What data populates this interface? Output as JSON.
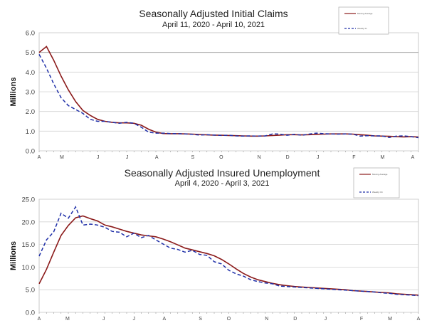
{
  "chart_data": [
    {
      "type": "line",
      "title": "Seasonally Adjusted Initial Claims",
      "subtitle": "April 11, 2020 - April 10, 2021",
      "ylabel": "Millions",
      "ylim": [
        0,
        6
      ],
      "yticks": [
        "0.0",
        "1.0",
        "2.0",
        "3.0",
        "4.0",
        "5.0",
        "6.0"
      ],
      "xtick_labels": [
        "A",
        "M",
        "J",
        "J",
        "A",
        "S",
        "O",
        "N",
        "D",
        "J",
        "F",
        "M",
        "A"
      ],
      "grid": true,
      "legend": "top-right",
      "colors": {
        "moving_average": "#8b1a1a",
        "weekly": "#1f2fa8"
      },
      "series": [
        {
          "name": "Moving Average",
          "style": "solid",
          "values": [
            5.0,
            5.3,
            4.6,
            3.8,
            3.1,
            2.5,
            2.05,
            1.8,
            1.6,
            1.5,
            1.45,
            1.42,
            1.42,
            1.4,
            1.3,
            1.1,
            0.95,
            0.88,
            0.87,
            0.87,
            0.86,
            0.85,
            0.83,
            0.81,
            0.8,
            0.79,
            0.78,
            0.77,
            0.76,
            0.75,
            0.75,
            0.76,
            0.78,
            0.8,
            0.82,
            0.82,
            0.81,
            0.82,
            0.84,
            0.85,
            0.86,
            0.86,
            0.86,
            0.85,
            0.82,
            0.79,
            0.76,
            0.75,
            0.74,
            0.72,
            0.71,
            0.72,
            0.7
          ]
        },
        {
          "name": "Weekly IC",
          "style": "dashed",
          "values": [
            4.9,
            4.2,
            3.4,
            2.7,
            2.3,
            2.1,
            1.9,
            1.6,
            1.5,
            1.5,
            1.45,
            1.4,
            1.45,
            1.4,
            1.2,
            0.95,
            0.9,
            0.9,
            0.88,
            0.87,
            0.86,
            0.84,
            0.8,
            0.82,
            0.8,
            0.78,
            0.79,
            0.76,
            0.75,
            0.76,
            0.75,
            0.76,
            0.86,
            0.85,
            0.79,
            0.84,
            0.79,
            0.85,
            0.9,
            0.87,
            0.86,
            0.85,
            0.86,
            0.85,
            0.75,
            0.77,
            0.76,
            0.76,
            0.68,
            0.75,
            0.76,
            0.72,
            0.67
          ]
        }
      ]
    },
    {
      "type": "line",
      "title": "Seasonally Adjusted Insured Unemployment",
      "subtitle": "April 4, 2020 - April 3, 2021",
      "ylabel": "Millions",
      "ylim": [
        0,
        25
      ],
      "yticks": [
        "0.0",
        "5.0",
        "10.0",
        "15.0",
        "20.0",
        "25.0"
      ],
      "xtick_labels": [
        "A",
        "M",
        "J",
        "J",
        "A",
        "S",
        "O",
        "N",
        "D",
        "J",
        "F",
        "M",
        "A"
      ],
      "grid": true,
      "legend": "top-right",
      "colors": {
        "moving_average": "#8b1a1a",
        "weekly": "#1f2fa8"
      },
      "series": [
        {
          "name": "Moving Average",
          "style": "solid",
          "values": [
            6.3,
            9.5,
            13.3,
            17.0,
            19.2,
            20.9,
            21.3,
            20.7,
            20.2,
            19.3,
            18.9,
            18.4,
            17.9,
            17.5,
            17.1,
            16.9,
            16.7,
            16.2,
            15.6,
            14.9,
            14.2,
            13.8,
            13.4,
            13.0,
            12.5,
            11.7,
            10.7,
            9.6,
            8.6,
            7.8,
            7.2,
            6.8,
            6.4,
            6.1,
            5.9,
            5.7,
            5.6,
            5.5,
            5.4,
            5.3,
            5.2,
            5.1,
            5.0,
            4.8,
            4.7,
            4.6,
            4.5,
            4.4,
            4.3,
            4.1,
            4.0,
            3.9,
            3.8
          ]
        },
        {
          "name": "Weekly CC",
          "style": "dashed",
          "values": [
            12.4,
            16.0,
            17.8,
            21.9,
            20.8,
            23.3,
            19.3,
            19.5,
            19.3,
            18.8,
            17.9,
            17.7,
            16.7,
            17.5,
            16.5,
            17.0,
            16.0,
            15.1,
            14.2,
            13.9,
            13.3,
            13.7,
            12.8,
            12.6,
            11.2,
            10.7,
            9.3,
            8.5,
            8.0,
            7.2,
            6.8,
            6.5,
            6.3,
            5.8,
            5.7,
            5.6,
            5.5,
            5.4,
            5.3,
            5.2,
            5.1,
            5.0,
            4.9,
            4.8,
            4.7,
            4.6,
            4.5,
            4.3,
            4.2,
            4.0,
            3.9,
            3.8,
            3.7
          ]
        }
      ]
    }
  ]
}
